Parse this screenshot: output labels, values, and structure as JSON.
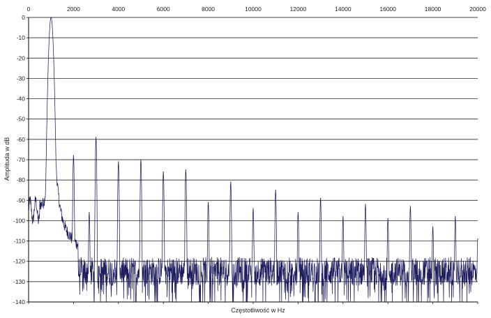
{
  "chart_data": {
    "type": "line",
    "title": "",
    "xlabel": "Częstotliwość w Hz",
    "ylabel": "Amplituda w dB",
    "xlim": [
      0,
      20000
    ],
    "ylim": [
      -140,
      0
    ],
    "x_ticks": [
      0,
      2000,
      4000,
      6000,
      8000,
      10000,
      12000,
      14000,
      16000,
      18000,
      20000
    ],
    "y_ticks": [
      0,
      -10,
      -20,
      -30,
      -40,
      -50,
      -60,
      -70,
      -80,
      -90,
      -100,
      -110,
      -120,
      -130,
      -140
    ],
    "grid": {
      "horizontal": true,
      "vertical": false
    },
    "legend": "none",
    "line_color": "#1c1c5e",
    "series": [
      {
        "noise_floor_db": -125,
        "fundamental": {
          "freq": 1000,
          "db": 0
        },
        "harmonics": [
          {
            "freq": 2000,
            "db": -68
          },
          {
            "freq": 2700,
            "db": -96
          },
          {
            "freq": 3000,
            "db": -59
          },
          {
            "freq": 4000,
            "db": -71
          },
          {
            "freq": 5000,
            "db": -70
          },
          {
            "freq": 6000,
            "db": -76
          },
          {
            "freq": 7000,
            "db": -75
          },
          {
            "freq": 8000,
            "db": -91
          },
          {
            "freq": 9000,
            "db": -81
          },
          {
            "freq": 10000,
            "db": -94
          },
          {
            "freq": 11000,
            "db": -85
          },
          {
            "freq": 12000,
            "db": -96
          },
          {
            "freq": 13000,
            "db": -89
          },
          {
            "freq": 14000,
            "db": -98
          },
          {
            "freq": 15000,
            "db": -92
          },
          {
            "freq": 16000,
            "db": -99
          },
          {
            "freq": 17000,
            "db": -93
          },
          {
            "freq": 18000,
            "db": -103
          },
          {
            "freq": 19000,
            "db": -98
          },
          {
            "freq": 20000,
            "db": -109
          }
        ]
      }
    ]
  }
}
